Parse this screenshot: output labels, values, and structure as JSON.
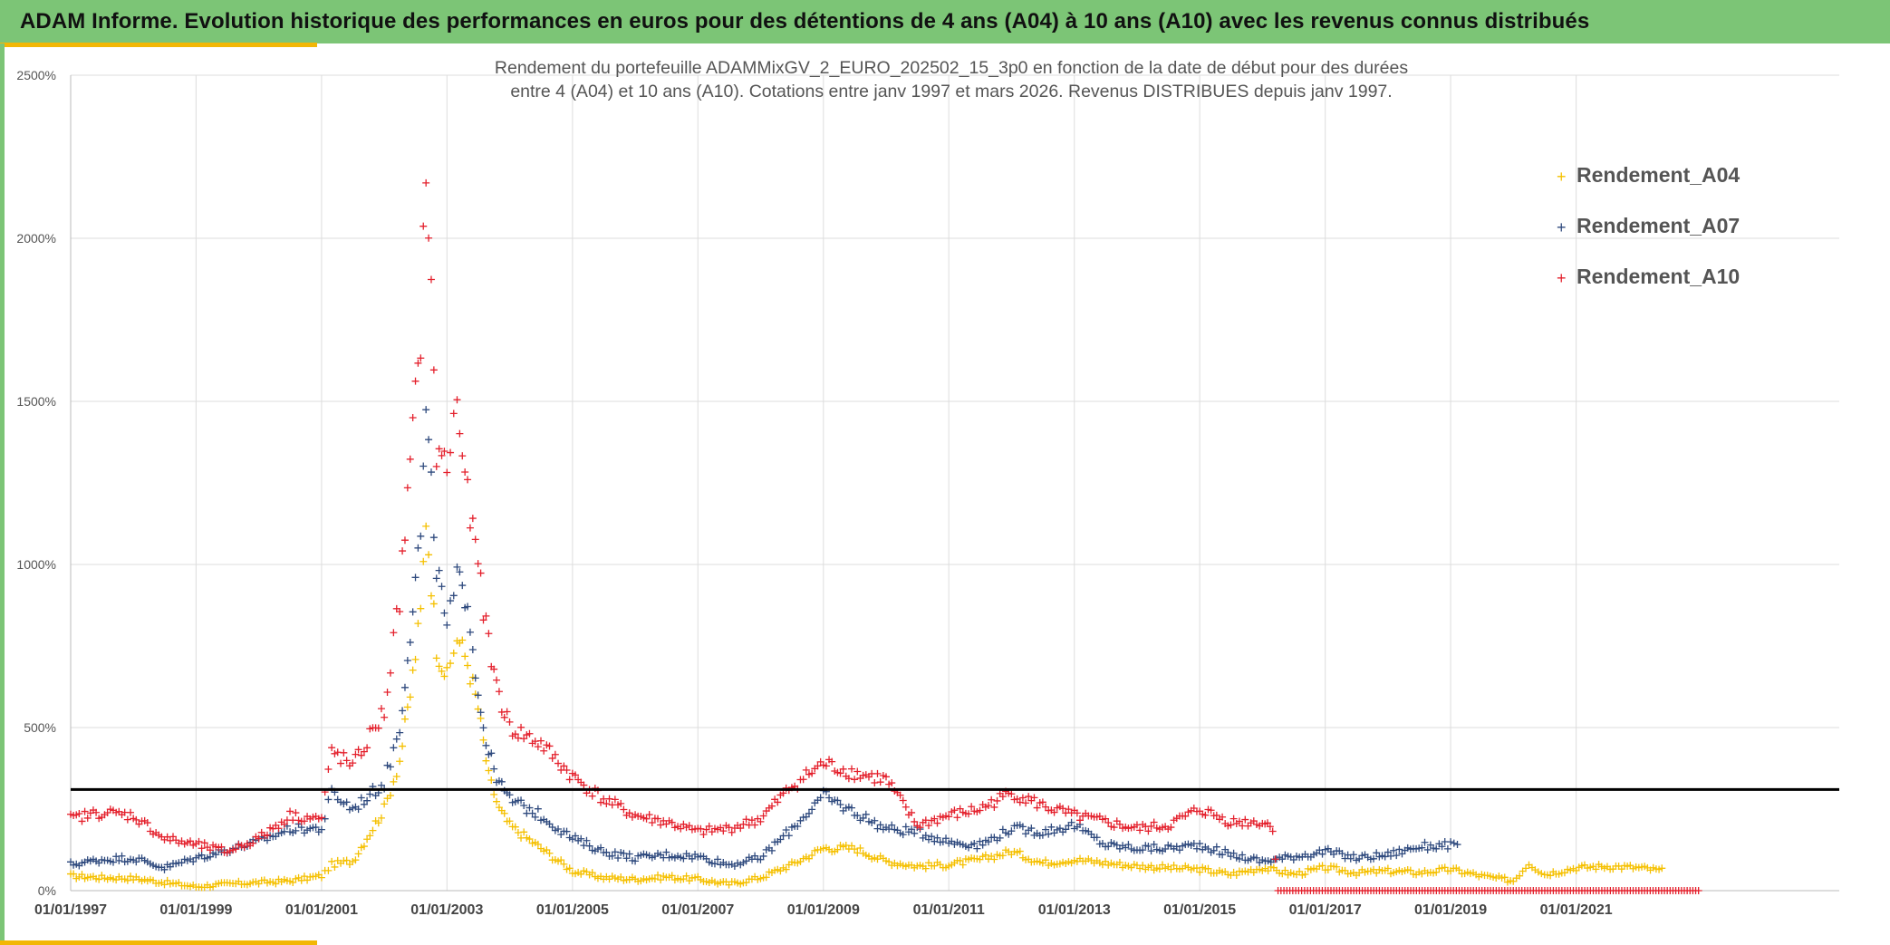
{
  "header": {
    "title": "ADAM Informe. Evolution historique des performances en euros pour des détentions de 4 ans (A04) à 10 ans (A10) avec les revenus connus distribués"
  },
  "colors": {
    "banner": "#7cc576",
    "accent": "#f2b705",
    "series_A04": "#f5c000",
    "series_A07": "#2f4a7e",
    "series_A10": "#e4202c",
    "reference_line": "#000000"
  },
  "chart_data": {
    "type": "scatter",
    "title": "Rendement du portefeuille ADAMMixGV_2_EURO_202502_15_3p0  en fonction de la date de début pour des durées\nentre 4 (A04) et 10 ans (A10). Cotations entre janv 1997 et mars 2026. Revenus DISTRIBUES depuis janv 1997.",
    "xlabel": "",
    "ylabel": "",
    "x_range": [
      "1997-01-01",
      "2023-01-01"
    ],
    "ylim": [
      0,
      2500
    ],
    "y_ticks": [
      0,
      500,
      1000,
      1500,
      2000,
      2500
    ],
    "y_tick_labels": [
      "0%",
      "500%",
      "1000%",
      "1500%",
      "2000%",
      "2500%"
    ],
    "x_tick_labels": [
      "01/01/1997",
      "01/01/1999",
      "01/01/2001",
      "01/01/2003",
      "01/01/2005",
      "01/01/2007",
      "01/01/2009",
      "01/01/2011",
      "01/01/2013",
      "01/01/2015",
      "01/01/2017",
      "01/01/2019",
      "01/01/2021"
    ],
    "x_tick_dates": [
      "1997-01-01",
      "1999-01-01",
      "2001-01-01",
      "2003-01-01",
      "2005-01-01",
      "2007-01-01",
      "2009-01-01",
      "2011-01-01",
      "2013-01-01",
      "2015-01-01",
      "2017-01-01",
      "2019-01-01",
      "2021-01-01"
    ],
    "grid": true,
    "legend_position": "top-right",
    "reference_line_y": 310,
    "series": [
      {
        "name": "Rendement_A04",
        "marker": "+",
        "points": [
          [
            "1997-01-01",
            45
          ],
          [
            "1997-07-01",
            40
          ],
          [
            "1998-01-01",
            38
          ],
          [
            "1998-07-01",
            25
          ],
          [
            "1999-01-01",
            12
          ],
          [
            "1999-07-01",
            20
          ],
          [
            "2000-01-01",
            25
          ],
          [
            "2000-07-01",
            30
          ],
          [
            "2001-01-01",
            45
          ],
          [
            "2001-03-01",
            80
          ],
          [
            "2001-07-01",
            90
          ],
          [
            "2002-01-01",
            250
          ],
          [
            "2002-04-01",
            400
          ],
          [
            "2002-06-01",
            600
          ],
          [
            "2002-08-01",
            850
          ],
          [
            "2002-09-01",
            1150
          ],
          [
            "2002-11-01",
            750
          ],
          [
            "2003-01-01",
            650
          ],
          [
            "2003-03-01",
            780
          ],
          [
            "2003-05-01",
            700
          ],
          [
            "2003-07-01",
            560
          ],
          [
            "2003-09-01",
            350
          ],
          [
            "2003-11-01",
            250
          ],
          [
            "2004-01-01",
            200
          ],
          [
            "2004-07-01",
            130
          ],
          [
            "2005-01-01",
            60
          ],
          [
            "2005-07-01",
            40
          ],
          [
            "2006-01-01",
            35
          ],
          [
            "2006-07-01",
            42
          ],
          [
            "2007-01-01",
            35
          ],
          [
            "2007-07-01",
            20
          ],
          [
            "2008-01-01",
            40
          ],
          [
            "2008-07-01",
            80
          ],
          [
            "2009-01-01",
            130
          ],
          [
            "2009-07-01",
            130
          ],
          [
            "2010-01-01",
            90
          ],
          [
            "2010-07-01",
            75
          ],
          [
            "2011-01-01",
            80
          ],
          [
            "2011-07-01",
            95
          ],
          [
            "2012-01-01",
            120
          ],
          [
            "2012-07-01",
            85
          ],
          [
            "2013-01-01",
            95
          ],
          [
            "2013-07-01",
            85
          ],
          [
            "2014-01-01",
            75
          ],
          [
            "2014-07-01",
            70
          ],
          [
            "2015-01-01",
            65
          ],
          [
            "2015-07-01",
            50
          ],
          [
            "2016-01-01",
            70
          ],
          [
            "2016-07-01",
            50
          ],
          [
            "2017-01-01",
            70
          ],
          [
            "2017-07-01",
            55
          ],
          [
            "2018-01-01",
            60
          ],
          [
            "2018-07-01",
            55
          ],
          [
            "2019-01-01",
            65
          ],
          [
            "2019-07-01",
            45
          ],
          [
            "2020-01-01",
            30
          ],
          [
            "2020-04-01",
            85
          ],
          [
            "2020-07-01",
            50
          ],
          [
            "2021-01-01",
            70
          ],
          [
            "2021-07-01",
            75
          ],
          [
            "2022-01-01",
            70
          ],
          [
            "2022-06-01",
            60
          ]
        ]
      },
      {
        "name": "Rendement_A07",
        "marker": "+",
        "points": [
          [
            "1997-01-01",
            80
          ],
          [
            "1997-07-01",
            95
          ],
          [
            "1998-01-01",
            100
          ],
          [
            "1998-07-01",
            70
          ],
          [
            "1999-01-01",
            100
          ],
          [
            "1999-07-01",
            125
          ],
          [
            "2000-01-01",
            150
          ],
          [
            "2000-07-01",
            190
          ],
          [
            "2001-01-01",
            190
          ],
          [
            "2001-03-01",
            300
          ],
          [
            "2001-07-01",
            250
          ],
          [
            "2002-01-01",
            330
          ],
          [
            "2002-04-01",
            500
          ],
          [
            "2002-06-01",
            800
          ],
          [
            "2002-08-01",
            1100
          ],
          [
            "2002-09-01",
            1450
          ],
          [
            "2002-11-01",
            1000
          ],
          [
            "2003-01-01",
            800
          ],
          [
            "2003-03-01",
            950
          ],
          [
            "2003-05-01",
            900
          ],
          [
            "2003-07-01",
            600
          ],
          [
            "2003-09-01",
            420
          ],
          [
            "2003-11-01",
            330
          ],
          [
            "2004-01-01",
            280
          ],
          [
            "2004-07-01",
            230
          ],
          [
            "2005-01-01",
            160
          ],
          [
            "2005-07-01",
            120
          ],
          [
            "2006-01-01",
            100
          ],
          [
            "2006-07-01",
            110
          ],
          [
            "2007-01-01",
            105
          ],
          [
            "2007-07-01",
            80
          ],
          [
            "2008-01-01",
            100
          ],
          [
            "2008-07-01",
            190
          ],
          [
            "2009-01-01",
            290
          ],
          [
            "2009-07-01",
            240
          ],
          [
            "2010-01-01",
            190
          ],
          [
            "2010-07-01",
            180
          ],
          [
            "2011-01-01",
            150
          ],
          [
            "2011-07-01",
            140
          ],
          [
            "2012-01-01",
            190
          ],
          [
            "2012-07-01",
            180
          ],
          [
            "2013-01-01",
            200
          ],
          [
            "2013-07-01",
            140
          ],
          [
            "2014-01-01",
            130
          ],
          [
            "2014-07-01",
            130
          ],
          [
            "2015-01-01",
            140
          ],
          [
            "2015-07-01",
            110
          ],
          [
            "2016-01-01",
            90
          ],
          [
            "2016-07-01",
            105
          ],
          [
            "2017-01-01",
            120
          ],
          [
            "2017-07-01",
            100
          ],
          [
            "2018-01-01",
            110
          ],
          [
            "2018-07-01",
            135
          ],
          [
            "2019-01-01",
            140
          ],
          [
            "2019-03-01",
            125
          ]
        ]
      },
      {
        "name": "Rendement_A10",
        "marker": "+",
        "points": [
          [
            "1997-01-01",
            220
          ],
          [
            "1997-07-01",
            240
          ],
          [
            "1998-01-01",
            230
          ],
          [
            "1998-07-01",
            160
          ],
          [
            "1999-01-01",
            140
          ],
          [
            "1999-07-01",
            120
          ],
          [
            "2000-01-01",
            160
          ],
          [
            "2000-07-01",
            230
          ],
          [
            "2001-01-01",
            220
          ],
          [
            "2001-03-01",
            430
          ],
          [
            "2001-07-01",
            380
          ],
          [
            "2002-01-01",
            550
          ],
          [
            "2002-04-01",
            900
          ],
          [
            "2002-06-01",
            1300
          ],
          [
            "2002-08-01",
            1700
          ],
          [
            "2002-09-01",
            2250
          ],
          [
            "2002-11-01",
            1350
          ],
          [
            "2003-01-01",
            1300
          ],
          [
            "2003-03-01",
            1500
          ],
          [
            "2003-05-01",
            1200
          ],
          [
            "2003-07-01",
            1000
          ],
          [
            "2003-09-01",
            750
          ],
          [
            "2003-11-01",
            600
          ],
          [
            "2004-01-01",
            500
          ],
          [
            "2004-07-01",
            450
          ],
          [
            "2005-01-01",
            350
          ],
          [
            "2005-07-01",
            280
          ],
          [
            "2006-01-01",
            230
          ],
          [
            "2006-07-01",
            210
          ],
          [
            "2007-01-01",
            180
          ],
          [
            "2007-07-01",
            190
          ],
          [
            "2008-01-01",
            220
          ],
          [
            "2008-07-01",
            320
          ],
          [
            "2009-01-01",
            390
          ],
          [
            "2009-07-01",
            360
          ],
          [
            "2010-01-01",
            340
          ],
          [
            "2010-07-01",
            200
          ],
          [
            "2011-01-01",
            230
          ],
          [
            "2011-07-01",
            250
          ],
          [
            "2012-01-01",
            300
          ],
          [
            "2012-07-01",
            260
          ],
          [
            "2013-01-01",
            230
          ],
          [
            "2013-07-01",
            210
          ],
          [
            "2014-01-01",
            190
          ],
          [
            "2014-07-01",
            200
          ],
          [
            "2015-01-01",
            250
          ],
          [
            "2015-07-01",
            210
          ],
          [
            "2016-01-01",
            210
          ],
          [
            "2016-03-01",
            195
          ],
          [
            "2016-04-01",
            0
          ],
          [
            "2017-01-01",
            0
          ],
          [
            "2018-01-01",
            0
          ],
          [
            "2019-01-01",
            0
          ],
          [
            "2020-01-01",
            0
          ],
          [
            "2021-01-01",
            0
          ],
          [
            "2022-01-01",
            0
          ],
          [
            "2022-12-31",
            0
          ]
        ]
      }
    ]
  }
}
